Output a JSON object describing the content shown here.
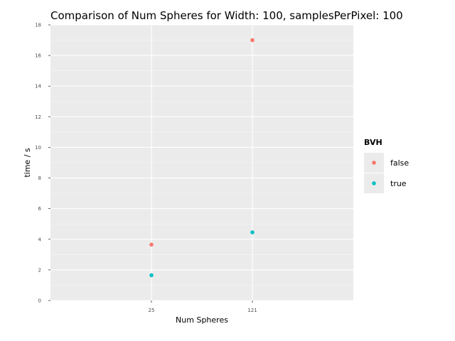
{
  "chart_data": {
    "type": "scatter",
    "title": "Comparison of Num Spheres for Width: 100, samplesPerPixel: 100",
    "xlabel": "Num Spheres",
    "ylabel": "time / s",
    "categories": [
      "25",
      "121"
    ],
    "ylim": [
      0,
      18
    ],
    "yticks": [
      0,
      2,
      4,
      6,
      8,
      10,
      12,
      14,
      16,
      18
    ],
    "grid": true,
    "legend": {
      "title": "BVH",
      "placement": "right"
    },
    "series": [
      {
        "name": "false",
        "color": "#F8766D",
        "values": [
          3.65,
          17.0
        ]
      },
      {
        "name": "true",
        "color": "#00BFC4",
        "values": [
          1.65,
          4.45
        ]
      }
    ]
  }
}
